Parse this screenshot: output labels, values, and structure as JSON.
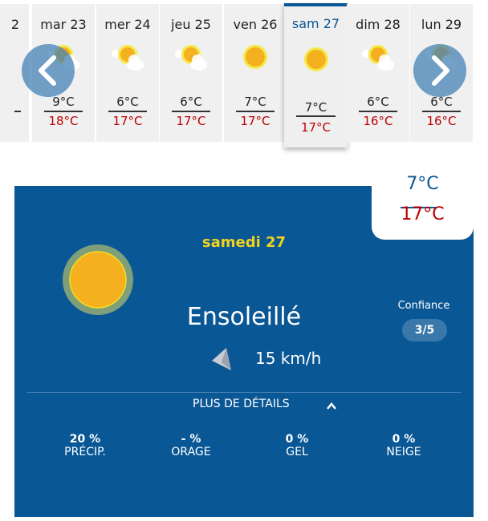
{
  "days": [
    {
      "label": "2",
      "low": "",
      "high": "",
      "icon": "sun-cloud"
    },
    {
      "label": "mar 23",
      "low": "9°C",
      "high": "18°C",
      "icon": "sun-cloud"
    },
    {
      "label": "mer 24",
      "low": "6°C",
      "high": "17°C",
      "icon": "sun-cloud"
    },
    {
      "label": "jeu 25",
      "low": "6°C",
      "high": "17°C",
      "icon": "sun-cloud"
    },
    {
      "label": "ven 26",
      "low": "7°C",
      "high": "17°C",
      "icon": "sun"
    },
    {
      "label": "sam 27",
      "low": "7°C",
      "high": "17°C",
      "icon": "sun",
      "selected": true
    },
    {
      "label": "dim 28",
      "low": "6°C",
      "high": "16°C",
      "icon": "sun-cloud"
    },
    {
      "label": "lun 29",
      "low": "6°C",
      "high": "16°C",
      "icon": "sun-cloud"
    }
  ],
  "detail": {
    "low": "7°C",
    "high": "17°C",
    "date": "samedi 27",
    "condition": "Ensoleillé",
    "confidence_label": "Confiance",
    "confidence": "3/5",
    "wind": "15 km/h",
    "details_label": "PLUS DE DÉTAILS",
    "stats": [
      {
        "value": "20 %",
        "label": "PRÉCIP."
      },
      {
        "value": "- %",
        "label": "ORAGE"
      },
      {
        "value": "0 %",
        "label": "GEL"
      },
      {
        "value": "0 %",
        "label": "NEIGE"
      }
    ]
  },
  "colors": {
    "brand": "#0a5795",
    "high": "#bb0000",
    "sun": "#f5b01f",
    "date": "#f2d21b"
  }
}
